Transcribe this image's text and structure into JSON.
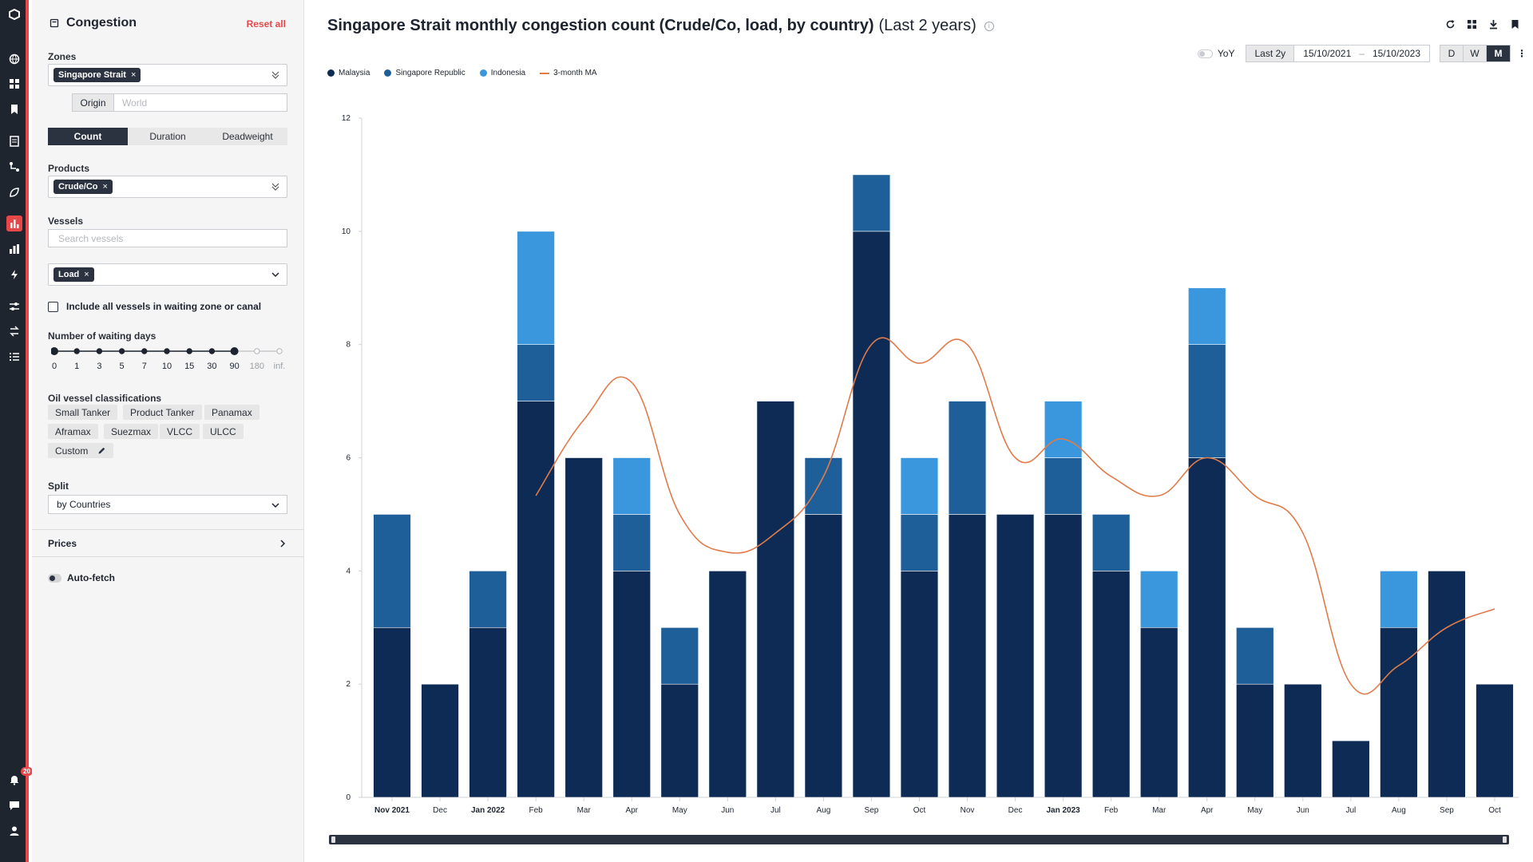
{
  "rail": {
    "items": [
      {
        "name": "logo-icon",
        "y": 18
      },
      {
        "name": "globe-icon",
        "y": 74
      },
      {
        "name": "dashboard-icon",
        "y": 105
      },
      {
        "name": "bookmark-icon",
        "y": 137
      },
      {
        "name": "report-icon",
        "y": 177
      },
      {
        "name": "flows-icon",
        "y": 209
      },
      {
        "name": "leaf-icon",
        "y": 241
      },
      {
        "name": "congestion-chart-icon",
        "y": 280,
        "active": true
      },
      {
        "name": "bar-chart-icon",
        "y": 312
      },
      {
        "name": "lightning-icon",
        "y": 344
      },
      {
        "name": "filters-icon",
        "y": 384
      },
      {
        "name": "transfer-icon",
        "y": 415
      },
      {
        "name": "list-icon",
        "y": 447
      },
      {
        "name": "notifications-icon",
        "y": 977,
        "badge": "20"
      },
      {
        "name": "chat-icon",
        "y": 1009
      },
      {
        "name": "user-icon",
        "y": 1041
      }
    ]
  },
  "panel": {
    "title": "Congestion",
    "reset_label": "Reset all",
    "zones_label": "Zones",
    "zone_chip": "Singapore Strait",
    "origin_label": "Origin",
    "origin_placeholder": "World",
    "metric_tabs": [
      "Count",
      "Duration",
      "Deadweight"
    ],
    "metric_selected": "Count",
    "products_label": "Products",
    "product_chip": "Crude/Co",
    "vessels_label": "Vessels",
    "vessels_placeholder": "Search vessels",
    "activity_chip": "Load",
    "include_all_label": "Include all vessels in waiting zone or canal",
    "waiting_days_label": "Number of waiting days",
    "waiting_days_ticks": [
      "0",
      "1",
      "3",
      "5",
      "7",
      "10",
      "15",
      "30",
      "90",
      "180",
      "inf."
    ],
    "waiting_days_selected_max_index": 8,
    "classifications_label": "Oil vessel classifications",
    "classifications": [
      "Small Tanker",
      "Product Tanker",
      "Panamax",
      "Aframax",
      "Suezmax",
      "VLCC",
      "ULCC",
      "Custom"
    ],
    "split_label": "Split",
    "split_value": "by Countries",
    "prices_label": "Prices",
    "autofetch_label": "Auto-fetch"
  },
  "main": {
    "title": "Singapore Strait monthly congestion count (Crude/Co, load, by country)",
    "subtitle": "(Last 2 years)",
    "info_glyph": "i",
    "yoy_label": "YoY",
    "period_label": "Last 2y",
    "date_from": "15/10/2021",
    "date_sep": "–",
    "date_to": "15/10/2023",
    "granularity": [
      "D",
      "W",
      "M"
    ],
    "granularity_selected": "M",
    "kebab": "⋮"
  },
  "colors": {
    "malaysia": "#0d2b55",
    "singapore": "#1f5f99",
    "indonesia": "#3a96dd",
    "ma": "#e07b4a",
    "accent": "#e8474a"
  },
  "chart_data": {
    "type": "bar",
    "stacked": true,
    "categories": [
      "Nov 2021",
      "Dec",
      "Jan 2022",
      "Feb",
      "Mar",
      "Apr",
      "May",
      "Jun",
      "Jul",
      "Aug",
      "Sep",
      "Oct",
      "Nov",
      "Dec",
      "Jan 2023",
      "Feb",
      "Mar",
      "Apr",
      "May",
      "Jun",
      "Jul",
      "Aug",
      "Sep",
      "Oct"
    ],
    "bold_categories": [
      "Nov 2021",
      "Jan 2022",
      "Jan 2023"
    ],
    "series": [
      {
        "name": "Malaysia",
        "values": [
          3,
          2,
          3,
          7,
          6,
          4,
          2,
          4,
          7,
          5,
          10,
          4,
          5,
          5,
          5,
          4,
          3,
          6,
          2,
          2,
          1,
          3,
          4,
          2
        ]
      },
      {
        "name": "Singapore Republic",
        "values": [
          2,
          0,
          1,
          1,
          0,
          1,
          1,
          0,
          0,
          1,
          1,
          1,
          2,
          0,
          1,
          1,
          0,
          2,
          1,
          0,
          0,
          0,
          0,
          0
        ]
      },
      {
        "name": "Indonesia",
        "values": [
          0,
          0,
          0,
          2,
          0,
          1,
          0,
          0,
          0,
          0,
          0,
          1,
          0,
          0,
          1,
          0,
          1,
          1,
          0,
          0,
          0,
          1,
          0,
          0
        ]
      }
    ],
    "line": {
      "name": "3-month MA",
      "values": [
        null,
        null,
        null,
        5.33,
        6.67,
        7.33,
        5.0,
        4.33,
        4.67,
        5.67,
        8.0,
        7.67,
        8.0,
        6.0,
        6.33,
        5.67,
        5.33,
        6.0,
        5.33,
        4.67,
        2.0,
        2.33,
        3.0,
        3.33
      ]
    },
    "ylim": [
      0,
      12
    ],
    "yticks": [
      0,
      2,
      4,
      6,
      8,
      10,
      12
    ],
    "grid": false,
    "legend_position": "top-left"
  }
}
